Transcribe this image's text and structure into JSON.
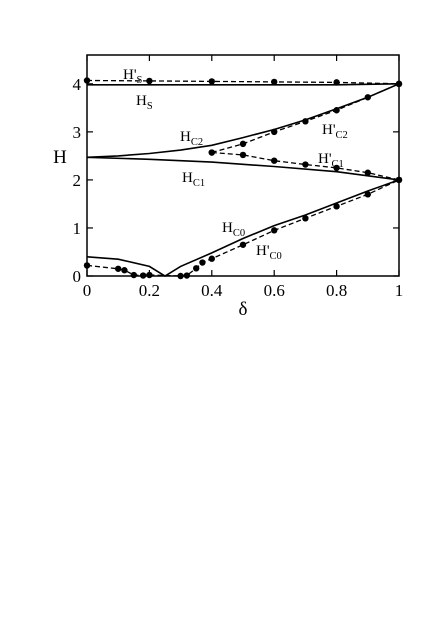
{
  "chart_data": {
    "type": "line",
    "xlabel": "δ",
    "ylabel": "H",
    "xlim": [
      0,
      1
    ],
    "ylim": [
      0,
      4.6
    ],
    "xticks": [
      "0",
      "0.2",
      "0.4",
      "0.6",
      "0.8",
      "1"
    ],
    "yticks": [
      "0",
      "1",
      "2",
      "3",
      "4"
    ],
    "grid": false,
    "legend": "none",
    "series": [
      {
        "name": "H'S",
        "label_main": "H'",
        "label_sub": "S",
        "style": "dashed",
        "markers": true,
        "x": [
          0,
          0.2,
          0.4,
          0.6,
          0.8,
          1.0
        ],
        "y": [
          4.07,
          4.06,
          4.05,
          4.04,
          4.03,
          4.0
        ]
      },
      {
        "name": "HS",
        "label_main": "H",
        "label_sub": "S",
        "style": "solid",
        "markers": false,
        "x": [
          0,
          0.2,
          0.4,
          0.6,
          0.8,
          1.0
        ],
        "y": [
          3.98,
          3.98,
          3.98,
          3.98,
          3.98,
          4.0
        ]
      },
      {
        "name": "HC2",
        "label_main": "H",
        "label_sub": "C2",
        "style": "solid",
        "markers": false,
        "x": [
          0,
          0.1,
          0.2,
          0.3,
          0.4,
          0.5,
          0.6,
          0.7,
          0.8,
          0.9,
          1.0
        ],
        "y": [
          2.47,
          2.5,
          2.55,
          2.62,
          2.72,
          2.88,
          3.05,
          3.25,
          3.48,
          3.72,
          4.0
        ]
      },
      {
        "name": "H'C2",
        "label_main": "H'",
        "label_sub": "C2",
        "style": "dashed",
        "markers": true,
        "x": [
          0.4,
          0.5,
          0.6,
          0.7,
          0.8,
          0.9,
          1.0
        ],
        "y": [
          2.57,
          2.75,
          3.0,
          3.22,
          3.45,
          3.72,
          4.0
        ]
      },
      {
        "name": "H'C1",
        "label_main": "H'",
        "label_sub": "C1",
        "style": "dashed",
        "markers": true,
        "x": [
          0.4,
          0.5,
          0.6,
          0.7,
          0.8,
          0.9,
          1.0
        ],
        "y": [
          2.57,
          2.52,
          2.4,
          2.32,
          2.25,
          2.15,
          2.0
        ]
      },
      {
        "name": "HC1",
        "label_main": "H",
        "label_sub": "C1",
        "style": "solid",
        "markers": false,
        "x": [
          0,
          0.2,
          0.4,
          0.6,
          0.8,
          1.0
        ],
        "y": [
          2.47,
          2.43,
          2.37,
          2.28,
          2.17,
          2.0
        ]
      },
      {
        "name": "HC0",
        "label_main": "H",
        "label_sub": "C0",
        "style": "solid",
        "markers": false,
        "x": [
          0,
          0.1,
          0.2,
          0.25,
          0.3,
          0.4,
          0.5,
          0.6,
          0.7,
          0.8,
          0.9,
          1.0
        ],
        "y": [
          0.4,
          0.35,
          0.2,
          0.0,
          0.2,
          0.48,
          0.78,
          1.05,
          1.27,
          1.52,
          1.77,
          2.0
        ]
      },
      {
        "name": "H'C0",
        "label_main": "H'",
        "label_sub": "C0",
        "style": "dashed",
        "markers": true,
        "x": [
          0,
          0.1,
          0.12,
          0.15,
          0.18,
          0.2,
          0.3,
          0.32,
          0.35,
          0.37,
          0.4,
          0.5,
          0.6,
          0.7,
          0.8,
          0.9,
          1.0
        ],
        "y": [
          0.22,
          0.15,
          0.12,
          0.02,
          0.01,
          0.02,
          0.0,
          0.01,
          0.16,
          0.28,
          0.36,
          0.65,
          0.95,
          1.2,
          1.45,
          1.7,
          2.0
        ]
      }
    ]
  }
}
